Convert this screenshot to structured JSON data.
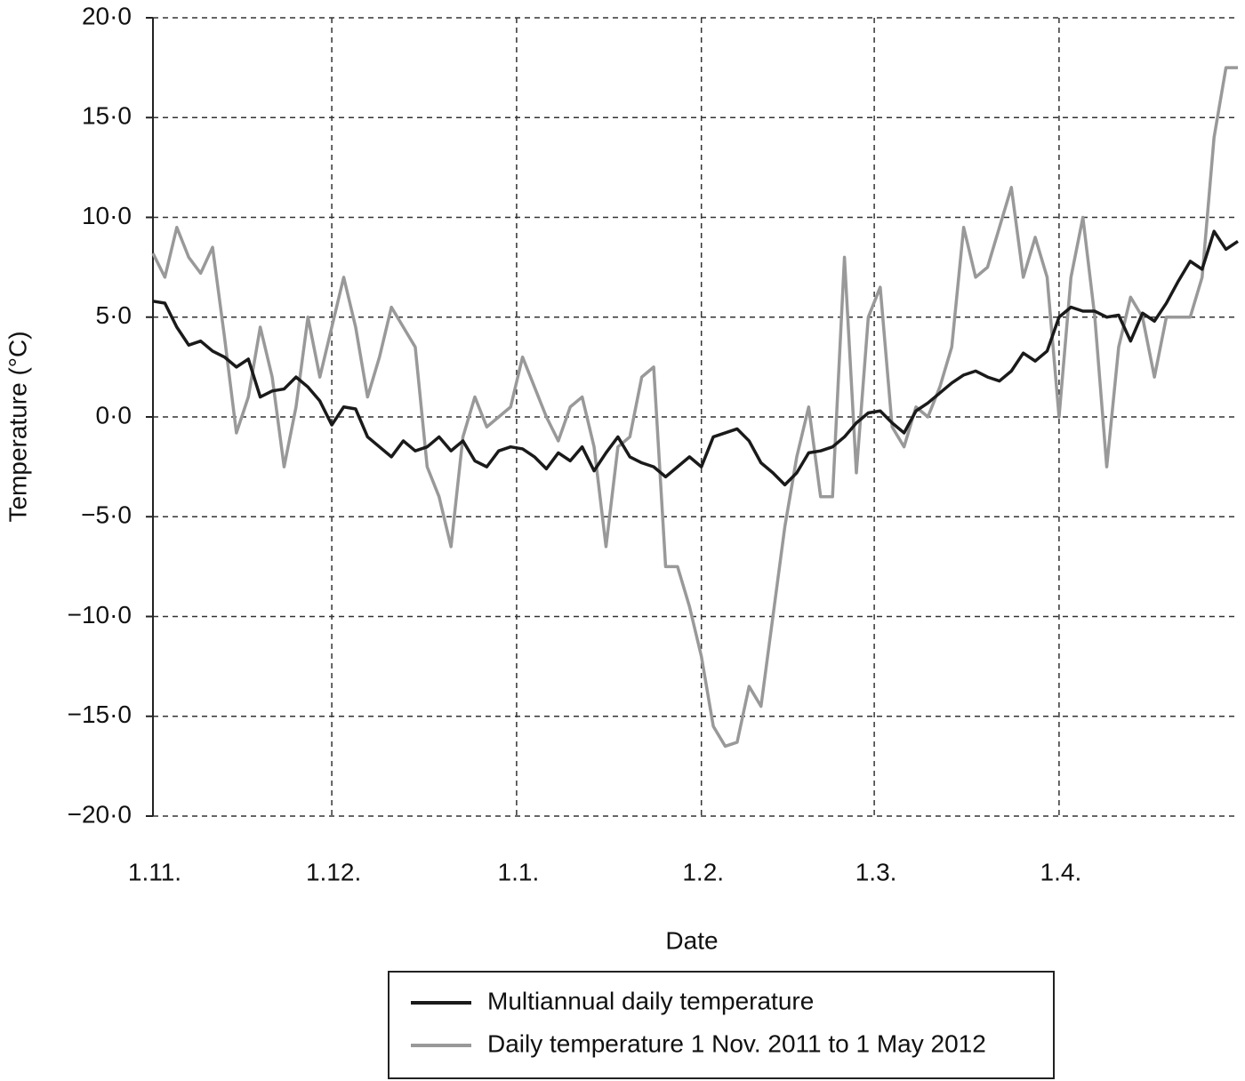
{
  "chart_data": {
    "type": "line",
    "y_label": "Temperature (°C)",
    "x_label": "Date",
    "x": [
      0,
      2,
      4,
      6,
      8,
      10,
      12,
      14,
      16,
      18,
      20,
      22,
      24,
      26,
      28,
      30,
      32,
      34,
      36,
      38,
      40,
      42,
      44,
      46,
      48,
      50,
      52,
      54,
      56,
      58,
      60,
      62,
      64,
      66,
      68,
      70,
      72,
      74,
      76,
      78,
      80,
      82,
      84,
      86,
      88,
      90,
      92,
      94,
      96,
      98,
      100,
      102,
      104,
      106,
      108,
      110,
      112,
      114,
      116,
      118,
      120,
      122,
      124,
      126,
      128,
      130,
      132,
      134,
      136,
      138,
      140,
      142,
      144,
      146,
      148,
      150,
      152,
      154,
      156,
      158,
      160,
      162,
      164,
      166,
      168,
      170,
      172,
      174,
      176,
      178,
      180,
      182
    ],
    "series": [
      {
        "name": "Multiannual daily temperature",
        "color": "#1a1a1a",
        "values": [
          5.8,
          5.7,
          4.5,
          3.6,
          3.8,
          3.3,
          3.0,
          2.5,
          2.9,
          1.0,
          1.3,
          1.4,
          2.0,
          1.5,
          0.8,
          -0.4,
          0.5,
          0.4,
          -1.0,
          -1.5,
          -2.0,
          -1.2,
          -1.7,
          -1.5,
          -1.0,
          -1.7,
          -1.2,
          -2.2,
          -2.5,
          -1.7,
          -1.5,
          -1.6,
          -2.0,
          -2.6,
          -1.8,
          -2.2,
          -1.5,
          -2.7,
          -1.8,
          -1.0,
          -2.0,
          -2.3,
          -2.5,
          -3.0,
          -2.5,
          -2.0,
          -2.5,
          -1.0,
          -0.8,
          -0.6,
          -1.2,
          -2.3,
          -2.8,
          -3.4,
          -2.8,
          -1.8,
          -1.7,
          -1.5,
          -1.0,
          -0.3,
          0.2,
          0.3,
          -0.3,
          -0.8,
          0.3,
          0.7,
          1.2,
          1.7,
          2.1,
          2.3,
          2.0,
          1.8,
          2.3,
          3.2,
          2.8,
          3.3,
          5.0,
          5.5,
          5.3,
          5.3,
          5.0,
          5.1,
          3.8,
          5.2,
          4.8,
          5.7,
          6.8,
          7.8,
          7.4,
          9.3,
          8.4,
          8.8
        ]
      },
      {
        "name": "Daily temperature 1 Nov. 2011 to 1 May 2012",
        "color": "#999999",
        "values": [
          8.2,
          7.0,
          9.5,
          8.0,
          7.2,
          8.5,
          4.0,
          -0.8,
          1.0,
          4.5,
          2.0,
          -2.5,
          0.5,
          5.0,
          2.0,
          4.5,
          7.0,
          4.5,
          1.0,
          3.0,
          5.5,
          4.5,
          3.5,
          -2.5,
          -4.0,
          -6.5,
          -1.0,
          1.0,
          -0.5,
          0.0,
          0.5,
          3.0,
          1.5,
          0.0,
          -1.2,
          0.5,
          1.0,
          -1.5,
          -6.5,
          -1.5,
          -1.0,
          2.0,
          2.5,
          -7.5,
          -7.5,
          -9.5,
          -12,
          -15.5,
          -16.5,
          -16.3,
          -13.5,
          -14.5,
          -10,
          -5.5,
          -2,
          0.5,
          -4,
          -4,
          8,
          -2.8,
          5,
          6.5,
          -0.5,
          -1.5,
          0.5,
          0,
          1.5,
          3.5,
          9.5,
          7,
          7.5,
          9.5,
          11.5,
          7,
          9,
          7,
          0,
          7,
          10,
          5,
          -2.5,
          3.5,
          6,
          5,
          2,
          5,
          5,
          5,
          7,
          14,
          17.5,
          17.5
        ]
      }
    ],
    "xlim": [
      0,
      182
    ],
    "xticks": [
      {
        "value": 0,
        "label": "1.11."
      },
      {
        "value": 30,
        "label": "1.12."
      },
      {
        "value": 61,
        "label": "1.1."
      },
      {
        "value": 92,
        "label": "1.2."
      },
      {
        "value": 121,
        "label": "1.3."
      },
      {
        "value": 152,
        "label": "1.4."
      }
    ],
    "ylim": [
      -20,
      20
    ],
    "yticks": [
      {
        "value": 20,
        "label": "20·0"
      },
      {
        "value": 15,
        "label": "15·0"
      },
      {
        "value": 10,
        "label": "10·0"
      },
      {
        "value": 5,
        "label": "5·0"
      },
      {
        "value": 0,
        "label": "0·0"
      },
      {
        "value": -5,
        "label": "−5·0"
      },
      {
        "value": -10,
        "label": "−10·0"
      },
      {
        "value": -15,
        "label": "−15·0"
      },
      {
        "value": -20,
        "label": "−20·0"
      }
    ],
    "grid": true,
    "legend": "bottom"
  }
}
